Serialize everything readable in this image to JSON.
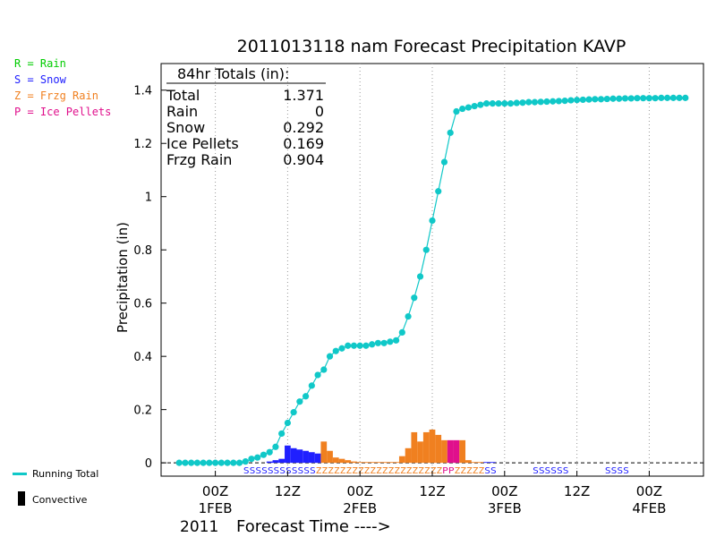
{
  "colors": {
    "rain": "#00cc00",
    "snow": "#2020ff",
    "frzg_rain": "#f08020",
    "ice_pellets": "#e0108c",
    "running_total": "#10c8c8",
    "convective": "#000000"
  },
  "legend": {
    "rain": "R = Rain",
    "snow": "S = Snow",
    "frzg_rain": "Z = Frzg Rain",
    "ice_pellets": "P = Ice Pellets",
    "running_total": "Running Total",
    "convective": "Convective"
  },
  "chart_data": {
    "type": "line",
    "title": "2011013118 nam Forecast Precipitation KAVP",
    "ylabel": "Precipitation (in)",
    "xlabel": "Forecast Time ---->",
    "year_label": "2011",
    "ylim": [
      -0.05,
      1.5
    ],
    "yticks": [
      0,
      0.2,
      0.4,
      0.6,
      0.8,
      1,
      1.2,
      1.4
    ],
    "ytick_labels": [
      "0",
      "0.2",
      "0.4",
      "0.6",
      "0.8",
      "1",
      "1.2",
      "1.4"
    ],
    "x_unit": "forecast hour",
    "xlim": [
      -3,
      87
    ],
    "xticks": [
      {
        "hour": 6,
        "line1": "00Z",
        "line2": "1FEB"
      },
      {
        "hour": 18,
        "line1": "12Z",
        "line2": ""
      },
      {
        "hour": 30,
        "line1": "00Z",
        "line2": "2FEB"
      },
      {
        "hour": 42,
        "line1": "12Z",
        "line2": ""
      },
      {
        "hour": 54,
        "line1": "00Z",
        "line2": "3FEB"
      },
      {
        "hour": 66,
        "line1": "12Z",
        "line2": ""
      },
      {
        "hour": 78,
        "line1": "00Z",
        "line2": "4FEB"
      }
    ],
    "totals_box": {
      "header": "84hr Totals (in):",
      "rows": [
        {
          "label": "Total",
          "value": "1.371"
        },
        {
          "label": "Rain",
          "value": "0"
        },
        {
          "label": "Snow",
          "value": "0.292"
        },
        {
          "label": "Ice Pellets",
          "value": "0.169"
        },
        {
          "label": "Frzg Rain",
          "value": "0.904"
        }
      ]
    },
    "running_total": {
      "hours": [
        0,
        1,
        2,
        3,
        4,
        5,
        6,
        7,
        8,
        9,
        10,
        11,
        12,
        13,
        14,
        15,
        16,
        17,
        18,
        19,
        20,
        21,
        22,
        23,
        24,
        25,
        26,
        27,
        28,
        29,
        30,
        31,
        32,
        33,
        34,
        35,
        36,
        37,
        38,
        39,
        40,
        41,
        42,
        43,
        44,
        45,
        46,
        47,
        48,
        49,
        50,
        51,
        52,
        53,
        54,
        55,
        56,
        57,
        58,
        59,
        60,
        61,
        62,
        63,
        64,
        65,
        66,
        67,
        68,
        69,
        70,
        71,
        72,
        73,
        74,
        75,
        76,
        77,
        78,
        79,
        80,
        81,
        82,
        83,
        84
      ],
      "values": [
        0,
        0,
        0,
        0,
        0,
        0,
        0,
        0,
        0,
        0,
        0,
        0.005,
        0.015,
        0.02,
        0.03,
        0.04,
        0.06,
        0.11,
        0.15,
        0.19,
        0.23,
        0.25,
        0.29,
        0.33,
        0.35,
        0.4,
        0.42,
        0.43,
        0.44,
        0.44,
        0.44,
        0.44,
        0.445,
        0.45,
        0.45,
        0.455,
        0.46,
        0.49,
        0.55,
        0.62,
        0.7,
        0.8,
        0.91,
        1.02,
        1.13,
        1.24,
        1.32,
        1.33,
        1.335,
        1.34,
        1.345,
        1.35,
        1.35,
        1.35,
        1.35,
        1.35,
        1.352,
        1.353,
        1.355,
        1.355,
        1.356,
        1.357,
        1.358,
        1.359,
        1.36,
        1.362,
        1.363,
        1.364,
        1.365,
        1.366,
        1.366,
        1.367,
        1.368,
        1.368,
        1.369,
        1.369,
        1.37,
        1.37,
        1.37,
        1.37,
        1.371,
        1.371,
        1.371,
        1.371,
        1.371
      ]
    },
    "bars": [
      {
        "hour": 15,
        "value": 0.005,
        "type": "snow"
      },
      {
        "hour": 16,
        "value": 0.01,
        "type": "snow"
      },
      {
        "hour": 17,
        "value": 0.015,
        "type": "snow"
      },
      {
        "hour": 18,
        "value": 0.065,
        "type": "snow"
      },
      {
        "hour": 19,
        "value": 0.055,
        "type": "snow"
      },
      {
        "hour": 20,
        "value": 0.05,
        "type": "snow"
      },
      {
        "hour": 21,
        "value": 0.045,
        "type": "snow"
      },
      {
        "hour": 22,
        "value": 0.04,
        "type": "snow"
      },
      {
        "hour": 23,
        "value": 0.035,
        "type": "snow"
      },
      {
        "hour": 24,
        "value": 0.08,
        "type": "frzg_rain"
      },
      {
        "hour": 25,
        "value": 0.045,
        "type": "frzg_rain"
      },
      {
        "hour": 26,
        "value": 0.02,
        "type": "frzg_rain"
      },
      {
        "hour": 27,
        "value": 0.015,
        "type": "frzg_rain"
      },
      {
        "hour": 28,
        "value": 0.01,
        "type": "frzg_rain"
      },
      {
        "hour": 29,
        "value": 0.005,
        "type": "frzg_rain"
      },
      {
        "hour": 30,
        "value": 0.003,
        "type": "frzg_rain"
      },
      {
        "hour": 31,
        "value": 0.003,
        "type": "frzg_rain"
      },
      {
        "hour": 32,
        "value": 0.003,
        "type": "frzg_rain"
      },
      {
        "hour": 33,
        "value": 0.003,
        "type": "frzg_rain"
      },
      {
        "hour": 34,
        "value": 0.003,
        "type": "frzg_rain"
      },
      {
        "hour": 35,
        "value": 0.003,
        "type": "frzg_rain"
      },
      {
        "hour": 36,
        "value": 0.003,
        "type": "frzg_rain"
      },
      {
        "hour": 37,
        "value": 0.025,
        "type": "frzg_rain"
      },
      {
        "hour": 38,
        "value": 0.055,
        "type": "frzg_rain"
      },
      {
        "hour": 39,
        "value": 0.115,
        "type": "frzg_rain"
      },
      {
        "hour": 40,
        "value": 0.08,
        "type": "frzg_rain"
      },
      {
        "hour": 41,
        "value": 0.115,
        "type": "frzg_rain"
      },
      {
        "hour": 42,
        "value": 0.125,
        "type": "frzg_rain"
      },
      {
        "hour": 43,
        "value": 0.105,
        "type": "frzg_rain"
      },
      {
        "hour": 44,
        "value": 0.085,
        "type": "frzg_rain"
      },
      {
        "hour": 45,
        "value": 0.085,
        "type": "ice_pellets"
      },
      {
        "hour": 46,
        "value": 0.085,
        "type": "ice_pellets"
      },
      {
        "hour": 47,
        "value": 0.085,
        "type": "frzg_rain"
      },
      {
        "hour": 48,
        "value": 0.01,
        "type": "frzg_rain"
      },
      {
        "hour": 49,
        "value": 0.003,
        "type": "frzg_rain"
      },
      {
        "hour": 50,
        "value": 0.003,
        "type": "frzg_rain"
      },
      {
        "hour": 51,
        "value": 0.003,
        "type": "snow"
      },
      {
        "hour": 52,
        "value": 0.003,
        "type": "snow"
      }
    ],
    "ptype_row": [
      {
        "start_hour": 11,
        "text": "SSSSSSSSSSSS",
        "type": "snow"
      },
      {
        "start_hour": 23,
        "text": "ZZZZZZZZZZZZZZZZZZZZZ",
        "type": "frzg_rain"
      },
      {
        "start_hour": 44,
        "text": "PP",
        "type": "ice_pellets"
      },
      {
        "start_hour": 46,
        "text": "ZZZZZ",
        "type": "frzg_rain"
      },
      {
        "start_hour": 51,
        "text": "SS",
        "type": "snow"
      },
      {
        "start_hour": 59,
        "text": "SSSSSS",
        "type": "snow"
      },
      {
        "start_hour": 71,
        "text": "SSSS",
        "type": "snow"
      }
    ]
  }
}
